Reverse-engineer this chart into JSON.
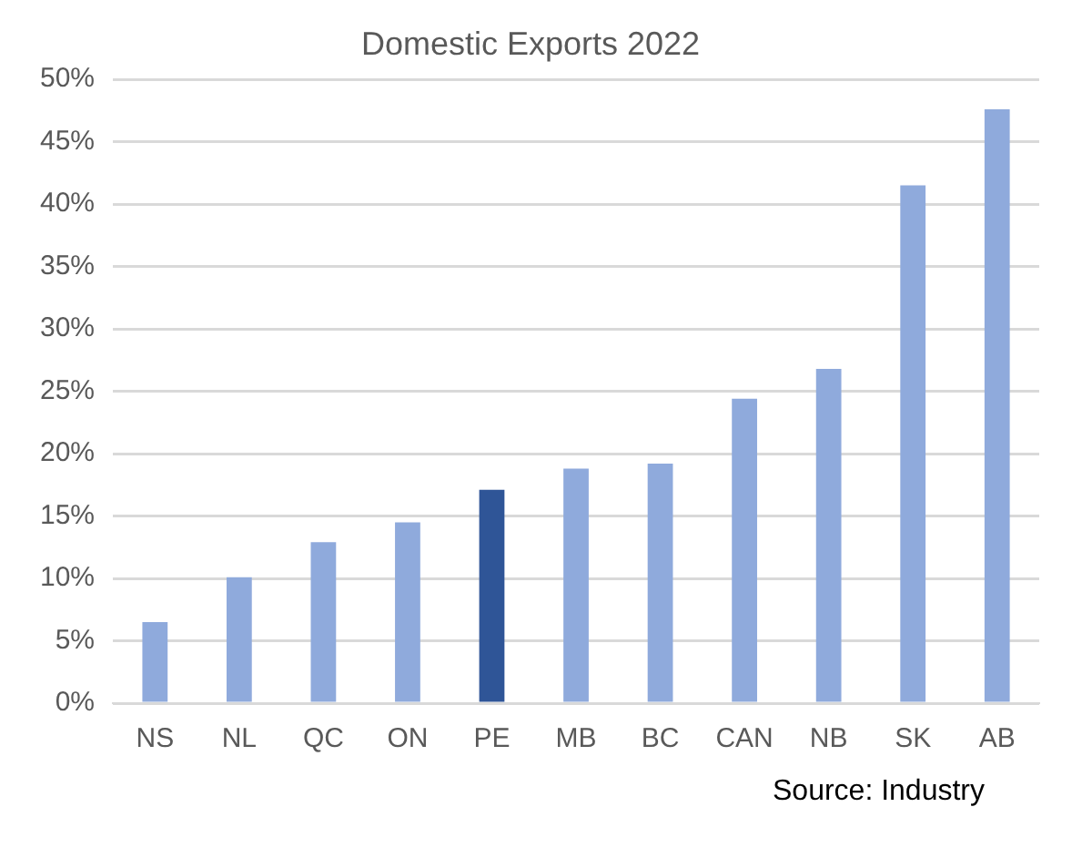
{
  "chart_data": {
    "type": "bar",
    "title": "Domestic Exports 2022",
    "categories": [
      "NS",
      "NL",
      "QC",
      "ON",
      "PE",
      "MB",
      "BC",
      "CAN",
      "NB",
      "SK",
      "AB"
    ],
    "values": [
      6.5,
      10.1,
      12.9,
      14.5,
      17.1,
      18.8,
      19.2,
      24.4,
      26.8,
      41.5,
      47.6
    ],
    "colors": [
      "#8faadc",
      "#8faadc",
      "#8faadc",
      "#8faadc",
      "#2f5597",
      "#8faadc",
      "#8faadc",
      "#8faadc",
      "#8faadc",
      "#8faadc",
      "#8faadc"
    ],
    "ylim": [
      0,
      50
    ],
    "yticks": [
      {
        "value": 0,
        "label": "0%"
      },
      {
        "value": 5,
        "label": "5%"
      },
      {
        "value": 10,
        "label": "10%"
      },
      {
        "value": 15,
        "label": "15%"
      },
      {
        "value": 20,
        "label": "20%"
      },
      {
        "value": 25,
        "label": "25%"
      },
      {
        "value": 30,
        "label": "30%"
      },
      {
        "value": 35,
        "label": "35%"
      },
      {
        "value": 40,
        "label": "40%"
      },
      {
        "value": 45,
        "label": "45%"
      },
      {
        "value": 50,
        "label": "50%"
      }
    ],
    "grid": "y",
    "legend": false,
    "annotations": [
      "Source: Industry"
    ]
  }
}
